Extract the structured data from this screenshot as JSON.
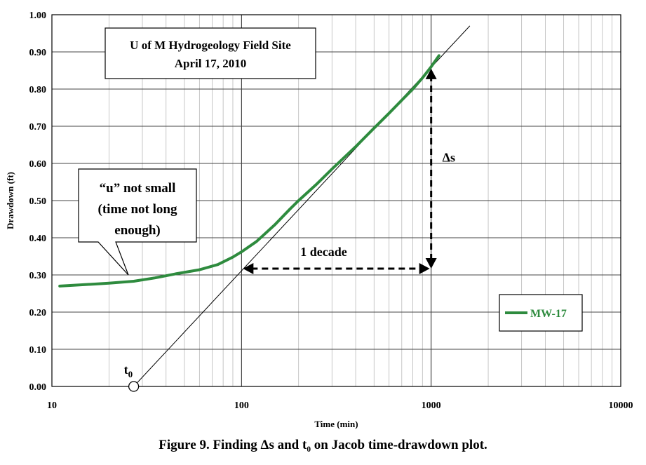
{
  "chart_data": {
    "type": "line",
    "xscale": "log",
    "xlim": [
      10,
      10000
    ],
    "ylim": [
      0.0,
      1.0
    ],
    "xticks": [
      "10",
      "100",
      "1000",
      "10000"
    ],
    "yticks": [
      "0.00",
      "0.10",
      "0.20",
      "0.30",
      "0.40",
      "0.50",
      "0.60",
      "0.70",
      "0.80",
      "0.90",
      "1.00"
    ],
    "xlabel": "Time (min)",
    "ylabel": "Drawdown (ft)",
    "grid": true,
    "legend_position": "right",
    "series": [
      {
        "name": "MW-17",
        "color": "#2e8b3e",
        "x": [
          11,
          15,
          20,
          27,
          35,
          45,
          60,
          75,
          90,
          100,
          120,
          150,
          180,
          200,
          250,
          300,
          400,
          500,
          600,
          700,
          800,
          900,
          1000,
          1100
        ],
        "y": [
          0.27,
          0.274,
          0.278,
          0.283,
          0.292,
          0.303,
          0.314,
          0.328,
          0.348,
          0.362,
          0.39,
          0.435,
          0.477,
          0.5,
          0.545,
          0.585,
          0.645,
          0.695,
          0.735,
          0.77,
          0.8,
          0.83,
          0.86,
          0.89
        ]
      }
    ],
    "fit_line": {
      "x": [
        27,
        1600
      ],
      "y": [
        0.0,
        0.97
      ],
      "color": "#000000"
    },
    "t0_marker": {
      "x": 27,
      "y": 0.0,
      "label": "t",
      "subscript": "0"
    },
    "decade_arrow": {
      "x_from": 100,
      "x_to": 1000,
      "y": 0.317,
      "label": "1 decade"
    },
    "delta_s_arrow": {
      "x": 1000,
      "y_from": 0.317,
      "y_to": 0.855,
      "label": "Δs"
    },
    "title_box": {
      "lines": [
        "U of M Hydrogeology Field Site",
        "April 17, 2010"
      ]
    },
    "callout": {
      "lines": [
        "“u” not small",
        "(time not long",
        "enough)"
      ]
    }
  },
  "caption": "Figure 9.  Finding Δs and t₀ on Jacob time-drawdown plot."
}
